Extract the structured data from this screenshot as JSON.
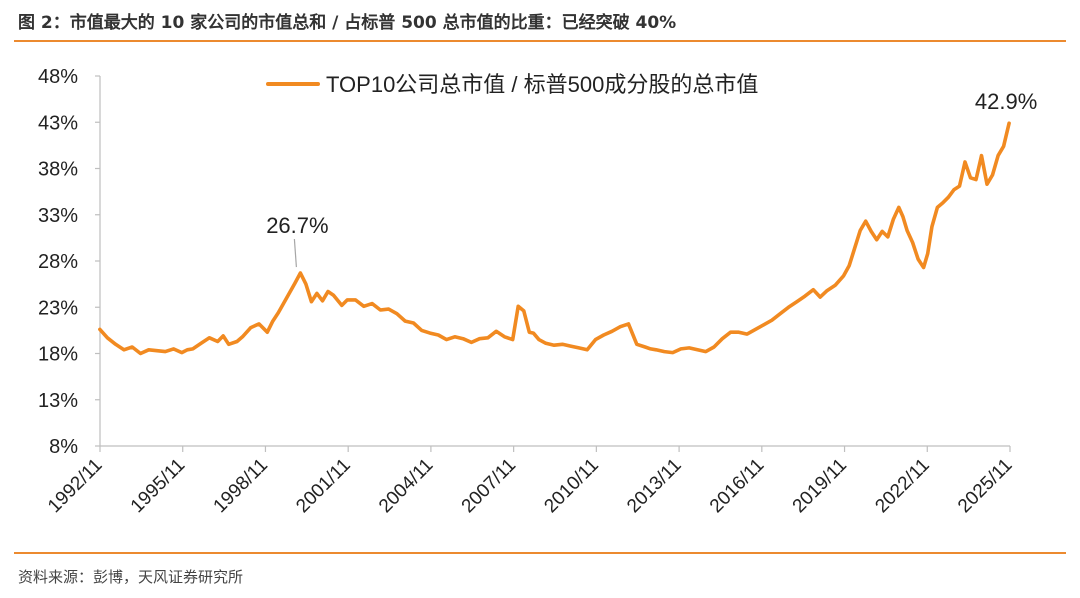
{
  "header": {
    "title": "图 2：市值最大的 10 家公司的市值总和 / 占标普 500 总市值的比重：已经突破 40%"
  },
  "footer": {
    "source": "资料来源：彭博，天风证券研究所"
  },
  "colors": {
    "series": "#f18a21",
    "rule": "#ec8a2f",
    "axis": "#bfbfbf",
    "text": "#222222"
  },
  "chart_data": {
    "type": "line",
    "title": "图 2：市值最大的 10 家公司的市值总和 / 占标普 500 总市值的比重：已经突破 40%",
    "xlabel": "",
    "ylabel": "",
    "ylim": [
      8,
      48
    ],
    "y_ticks": [
      8,
      13,
      18,
      23,
      28,
      33,
      38,
      43,
      48
    ],
    "y_tick_labels": [
      "8%",
      "13%",
      "18%",
      "23%",
      "28%",
      "33%",
      "38%",
      "43%",
      "48%"
    ],
    "x_range": [
      1992.833,
      2025.833
    ],
    "x_ticks": [
      1992.833,
      1995.833,
      1998.833,
      2001.833,
      2004.833,
      2007.833,
      2010.833,
      2013.833,
      2016.833,
      2019.833,
      2022.833,
      2025.833
    ],
    "x_tick_labels": [
      "1992/11",
      "1995/11",
      "1998/11",
      "2001/11",
      "2004/11",
      "2007/11",
      "2010/11",
      "2013/11",
      "2016/11",
      "2019/11",
      "2022/11",
      "2025/11"
    ],
    "grid": false,
    "legend_position": "top-center",
    "series": [
      {
        "name": "TOP10公司总市值 / 标普500成分股的总市值",
        "x": [
          1992.83,
          1993.1,
          1993.4,
          1993.7,
          1994.0,
          1994.3,
          1994.6,
          1994.9,
          1995.2,
          1995.5,
          1995.8,
          1996.0,
          1996.2,
          1996.5,
          1996.8,
          1997.1,
          1997.3,
          1997.5,
          1997.8,
          1998.0,
          1998.3,
          1998.6,
          1998.9,
          1999.1,
          1999.3,
          1999.6,
          1999.9,
          2000.1,
          2000.3,
          2000.5,
          2000.7,
          2000.9,
          2001.1,
          2001.3,
          2001.6,
          2001.8,
          2002.1,
          2002.4,
          2002.7,
          2003.0,
          2003.3,
          2003.6,
          2003.9,
          2004.2,
          2004.5,
          2004.8,
          2005.1,
          2005.4,
          2005.7,
          2006.0,
          2006.3,
          2006.6,
          2006.9,
          2007.2,
          2007.5,
          2007.8,
          2008.0,
          2008.2,
          2008.4,
          2008.55,
          2008.75,
          2009.0,
          2009.3,
          2009.6,
          2009.9,
          2010.2,
          2010.5,
          2010.8,
          2011.1,
          2011.4,
          2011.7,
          2012.0,
          2012.3,
          2012.6,
          2012.8,
          2013.0,
          2013.3,
          2013.6,
          2013.9,
          2014.2,
          2014.5,
          2014.8,
          2015.1,
          2015.4,
          2015.7,
          2016.0,
          2016.3,
          2016.6,
          2016.9,
          2017.2,
          2017.5,
          2017.8,
          2018.1,
          2018.4,
          2018.7,
          2018.95,
          2019.2,
          2019.5,
          2019.8,
          2020.0,
          2020.2,
          2020.4,
          2020.6,
          2020.8,
          2021.0,
          2021.2,
          2021.4,
          2021.6,
          2021.8,
          2021.95,
          2022.1,
          2022.3,
          2022.5,
          2022.7,
          2022.85,
          2023.0,
          2023.2,
          2023.4,
          2023.6,
          2023.8,
          2024.0,
          2024.2,
          2024.4,
          2024.6,
          2024.8,
          2025.0,
          2025.2,
          2025.4,
          2025.6,
          2025.8
        ],
        "values": [
          20.6,
          19.7,
          19.0,
          18.4,
          18.7,
          18.0,
          18.4,
          18.3,
          18.2,
          18.5,
          18.1,
          18.4,
          18.5,
          19.1,
          19.7,
          19.3,
          19.9,
          19.0,
          19.3,
          19.8,
          20.8,
          21.2,
          20.3,
          21.5,
          22.4,
          24.0,
          25.6,
          26.7,
          25.5,
          23.6,
          24.5,
          23.7,
          24.7,
          24.3,
          23.2,
          23.8,
          23.8,
          23.1,
          23.4,
          22.7,
          22.8,
          22.3,
          21.5,
          21.3,
          20.5,
          20.2,
          20.0,
          19.5,
          19.8,
          19.6,
          19.2,
          19.6,
          19.7,
          20.4,
          19.8,
          19.5,
          23.1,
          22.6,
          20.3,
          20.2,
          19.5,
          19.1,
          18.9,
          19.0,
          18.8,
          18.6,
          18.4,
          19.5,
          20.0,
          20.4,
          20.9,
          21.2,
          19.0,
          18.7,
          18.5,
          18.4,
          18.2,
          18.1,
          18.5,
          18.6,
          18.4,
          18.2,
          18.7,
          19.6,
          20.3,
          20.3,
          20.1,
          20.6,
          21.1,
          21.6,
          22.3,
          23.0,
          23.6,
          24.2,
          24.9,
          24.1,
          24.8,
          25.4,
          26.4,
          27.5,
          29.4,
          31.3,
          32.3,
          31.2,
          30.3,
          31.2,
          30.6,
          32.5,
          33.8,
          32.8,
          31.3,
          30.0,
          28.2,
          27.3,
          28.8,
          31.7,
          33.8,
          34.3,
          34.9,
          35.7,
          36.1,
          38.7,
          37.0,
          36.8,
          39.4,
          36.3,
          37.3,
          39.4,
          40.4,
          42.9
        ]
      }
    ],
    "annotations": [
      {
        "label": "26.7%",
        "x": 2000.1,
        "y": 26.7,
        "leader": true
      },
      {
        "label": "42.9%",
        "x": 2025.8,
        "y": 42.9,
        "leader": false
      }
    ]
  }
}
